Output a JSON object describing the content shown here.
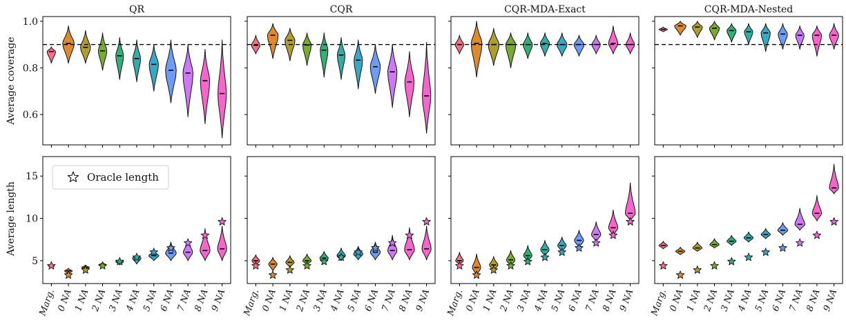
{
  "figure": {
    "row_ylabels": [
      "Average coverage",
      "Average length"
    ],
    "legend_label": "Oracle length",
    "target_coverage": 0.9
  },
  "chart_data": [
    {
      "type": "violin",
      "title": "QR",
      "ylabel": "Average coverage",
      "ylim": [
        0.47,
        1.02
      ],
      "yticks": [
        0.6,
        0.8,
        1.0
      ],
      "ytick_labels": [
        "0.6",
        "0.8",
        "1.0"
      ],
      "show_ytick_labels": true,
      "categories": [
        "Marg.",
        "0 NA",
        "1 NA",
        "2 NA",
        "3 NA",
        "4 NA",
        "5 NA",
        "6 NA",
        "7 NA",
        "8 NA",
        "9 NA"
      ],
      "reference_line": 0.9,
      "medians": [
        0.87,
        0.905,
        0.888,
        0.873,
        0.852,
        0.84,
        0.815,
        0.79,
        0.778,
        0.745,
        0.69
      ],
      "mins": [
        0.82,
        0.82,
        0.82,
        0.79,
        0.75,
        0.74,
        0.7,
        0.65,
        0.59,
        0.56,
        0.5
      ],
      "maxs": [
        0.89,
        0.98,
        0.96,
        0.95,
        0.93,
        0.92,
        0.9,
        0.92,
        0.9,
        0.88,
        0.92
      ],
      "halfwidths": [
        0.55,
        0.75,
        0.65,
        0.55,
        0.5,
        0.5,
        0.6,
        0.7,
        0.65,
        0.6,
        0.55
      ]
    },
    {
      "type": "violin",
      "title": "CQR",
      "ylabel": "",
      "ylim": [
        0.47,
        1.02
      ],
      "yticks": [
        0.6,
        0.8,
        1.0
      ],
      "ytick_labels": [
        "",
        "",
        ""
      ],
      "show_ytick_labels": false,
      "categories": [
        "Marg.",
        "0 NA",
        "1 NA",
        "2 NA",
        "3 NA",
        "4 NA",
        "5 NA",
        "6 NA",
        "7 NA",
        "8 NA",
        "9 NA"
      ],
      "reference_line": 0.9,
      "medians": [
        0.897,
        0.94,
        0.918,
        0.898,
        0.876,
        0.855,
        0.833,
        0.805,
        0.783,
        0.74,
        0.68
      ],
      "mins": [
        0.86,
        0.84,
        0.83,
        0.81,
        0.76,
        0.75,
        0.71,
        0.69,
        0.63,
        0.59,
        0.52
      ],
      "maxs": [
        0.94,
        0.99,
        0.97,
        0.95,
        0.95,
        0.93,
        0.92,
        0.9,
        0.9,
        0.87,
        0.91
      ],
      "halfwidths": [
        0.55,
        0.7,
        0.65,
        0.55,
        0.5,
        0.5,
        0.55,
        0.65,
        0.6,
        0.6,
        0.55
      ]
    },
    {
      "type": "violin",
      "title": "CQR-MDA-Exact",
      "ylabel": "",
      "ylim": [
        0.47,
        1.02
      ],
      "yticks": [
        0.6,
        0.8,
        1.0
      ],
      "ytick_labels": [
        "",
        "",
        ""
      ],
      "show_ytick_labels": false,
      "categories": [
        "Marg.",
        "0 NA",
        "1 NA",
        "2 NA",
        "3 NA",
        "4 NA",
        "5 NA",
        "6 NA",
        "7 NA",
        "8 NA",
        "9 NA"
      ],
      "reference_line": 0.9,
      "medians": [
        0.9,
        0.905,
        0.9,
        0.9,
        0.9,
        0.905,
        0.9,
        0.9,
        0.9,
        0.905,
        0.9
      ],
      "mins": [
        0.86,
        0.76,
        0.81,
        0.8,
        0.84,
        0.85,
        0.85,
        0.85,
        0.86,
        0.86,
        0.86
      ],
      "maxs": [
        0.94,
        1.0,
        0.97,
        0.95,
        0.95,
        0.95,
        0.95,
        0.94,
        0.94,
        0.98,
        0.95
      ],
      "halfwidths": [
        0.55,
        0.7,
        0.7,
        0.65,
        0.6,
        0.6,
        0.65,
        0.65,
        0.55,
        0.6,
        0.55
      ]
    },
    {
      "type": "violin",
      "title": "CQR-MDA-Nested",
      "ylabel": "",
      "ylim": [
        0.47,
        1.02
      ],
      "yticks": [
        0.6,
        0.8,
        1.0
      ],
      "ytick_labels": [
        "",
        "",
        ""
      ],
      "show_ytick_labels": false,
      "categories": [
        "Marg.",
        "0 NA",
        "1 NA",
        "2 NA",
        "3 NA",
        "4 NA",
        "5 NA",
        "6 NA",
        "7 NA",
        "8 NA",
        "9 NA"
      ],
      "reference_line": 0.9,
      "medians": [
        0.965,
        0.98,
        0.975,
        0.97,
        0.96,
        0.955,
        0.95,
        0.945,
        0.94,
        0.94,
        0.94
      ],
      "mins": [
        0.955,
        0.94,
        0.93,
        0.92,
        0.91,
        0.9,
        0.87,
        0.88,
        0.88,
        0.85,
        0.88
      ],
      "maxs": [
        0.975,
        1.0,
        1.0,
        1.0,
        0.99,
        0.99,
        0.99,
        0.99,
        0.98,
        0.98,
        0.99
      ],
      "halfwidths": [
        0.55,
        0.75,
        0.65,
        0.65,
        0.6,
        0.55,
        0.6,
        0.6,
        0.55,
        0.6,
        0.6
      ]
    },
    {
      "type": "violin",
      "title": "",
      "ylabel": "Average length",
      "ylim": [
        2.3,
        17.3
      ],
      "yticks": [
        5,
        10,
        15
      ],
      "ytick_labels": [
        "5",
        "10",
        "15"
      ],
      "show_ytick_labels": true,
      "categories": [
        "Marg.",
        "0 NA",
        "1 NA",
        "2 NA",
        "3 NA",
        "4 NA",
        "5 NA",
        "6 NA",
        "7 NA",
        "8 NA",
        "9 NA"
      ],
      "medians": [
        4.4,
        3.8,
        4.2,
        4.5,
        4.9,
        5.3,
        5.6,
        5.9,
        6.0,
        6.2,
        6.4
      ],
      "mins": [
        4.2,
        3.4,
        3.9,
        4.2,
        4.5,
        4.6,
        5.0,
        5.0,
        5.0,
        5.0,
        5.0
      ],
      "maxs": [
        4.7,
        4.1,
        4.5,
        4.8,
        5.2,
        5.7,
        6.2,
        7.2,
        7.6,
        8.8,
        9.1
      ],
      "halfwidths": [
        0.4,
        0.5,
        0.5,
        0.5,
        0.5,
        0.55,
        0.65,
        0.7,
        0.6,
        0.65,
        0.6
      ],
      "oracle_lengths": [
        4.4,
        3.3,
        3.9,
        4.4,
        4.9,
        5.4,
        6.0,
        6.5,
        7.1,
        8.0,
        9.6
      ],
      "legend": [
        "Oracle length"
      ]
    },
    {
      "type": "violin",
      "title": "",
      "ylabel": "",
      "ylim": [
        2.3,
        17.3
      ],
      "yticks": [
        5,
        10,
        15
      ],
      "ytick_labels": [
        "",
        "",
        ""
      ],
      "show_ytick_labels": false,
      "categories": [
        "Marg.",
        "0 NA",
        "1 NA",
        "2 NA",
        "3 NA",
        "4 NA",
        "5 NA",
        "6 NA",
        "7 NA",
        "8 NA",
        "9 NA"
      ],
      "medians": [
        5.0,
        4.6,
        4.8,
        5.0,
        5.3,
        5.6,
        5.8,
        6.0,
        6.2,
        6.3,
        6.4
      ],
      "mins": [
        4.4,
        3.8,
        4.2,
        4.5,
        4.7,
        5.0,
        5.1,
        5.1,
        5.1,
        5.1,
        5.1
      ],
      "maxs": [
        5.7,
        5.4,
        5.6,
        5.8,
        6.1,
        6.5,
        6.7,
        7.2,
        8.0,
        8.9,
        9.1
      ],
      "halfwidths": [
        0.5,
        0.55,
        0.55,
        0.55,
        0.55,
        0.55,
        0.6,
        0.65,
        0.6,
        0.65,
        0.6
      ],
      "oracle_lengths": [
        4.4,
        3.3,
        3.9,
        4.4,
        4.9,
        5.4,
        6.0,
        6.5,
        7.1,
        8.0,
        9.6
      ]
    },
    {
      "type": "violin",
      "title": "",
      "ylabel": "",
      "ylim": [
        2.3,
        17.3
      ],
      "yticks": [
        5,
        10,
        15
      ],
      "ytick_labels": [
        "",
        "",
        ""
      ],
      "show_ytick_labels": false,
      "categories": [
        "Marg.",
        "0 NA",
        "1 NA",
        "2 NA",
        "3 NA",
        "4 NA",
        "5 NA",
        "6 NA",
        "7 NA",
        "8 NA",
        "9 NA"
      ],
      "medians": [
        5.0,
        4.2,
        4.5,
        5.1,
        5.6,
        6.3,
        6.8,
        7.4,
        8.1,
        8.9,
        10.6
      ],
      "mins": [
        4.5,
        3.2,
        3.8,
        4.3,
        4.9,
        5.5,
        6.0,
        6.5,
        7.2,
        7.9,
        9.7
      ],
      "maxs": [
        6.0,
        5.8,
        5.5,
        6.2,
        6.8,
        7.4,
        7.8,
        8.6,
        9.6,
        11.0,
        14.2
      ],
      "halfwidths": [
        0.5,
        0.55,
        0.55,
        0.55,
        0.55,
        0.55,
        0.55,
        0.6,
        0.6,
        0.6,
        0.65
      ],
      "oracle_lengths": [
        4.4,
        3.3,
        3.9,
        4.4,
        4.9,
        5.4,
        6.0,
        6.5,
        7.1,
        8.0,
        9.6
      ]
    },
    {
      "type": "violin",
      "title": "",
      "ylabel": "",
      "ylim": [
        2.3,
        17.3
      ],
      "yticks": [
        5,
        10,
        15
      ],
      "ytick_labels": [
        "",
        "",
        ""
      ],
      "show_ytick_labels": false,
      "categories": [
        "Marg.",
        "0 NA",
        "1 NA",
        "2 NA",
        "3 NA",
        "4 NA",
        "5 NA",
        "6 NA",
        "7 NA",
        "8 NA",
        "9 NA"
      ],
      "medians": [
        6.8,
        6.1,
        6.5,
        6.9,
        7.3,
        7.7,
        8.1,
        8.6,
        9.3,
        10.6,
        13.6
      ],
      "mins": [
        6.4,
        5.7,
        6.1,
        6.5,
        6.8,
        7.2,
        7.6,
        8.0,
        8.6,
        9.7,
        12.9
      ],
      "maxs": [
        7.3,
        6.6,
        7.2,
        7.6,
        8.0,
        8.4,
        8.8,
        9.5,
        11.2,
        12.7,
        16.4
      ],
      "halfwidths": [
        0.55,
        0.6,
        0.6,
        0.6,
        0.6,
        0.6,
        0.6,
        0.65,
        0.65,
        0.6,
        0.6
      ],
      "oracle_lengths": [
        4.4,
        3.3,
        3.9,
        4.4,
        4.9,
        5.4,
        6.0,
        6.5,
        7.1,
        8.0,
        9.6
      ]
    }
  ],
  "colors": [
    "#f77189",
    "#dc8932",
    "#ae9d31",
    "#77ab31",
    "#33b07a",
    "#36ada4",
    "#38a9c5",
    "#6e9bf4",
    "#cc7af4",
    "#f565cc",
    "#f565cc"
  ]
}
